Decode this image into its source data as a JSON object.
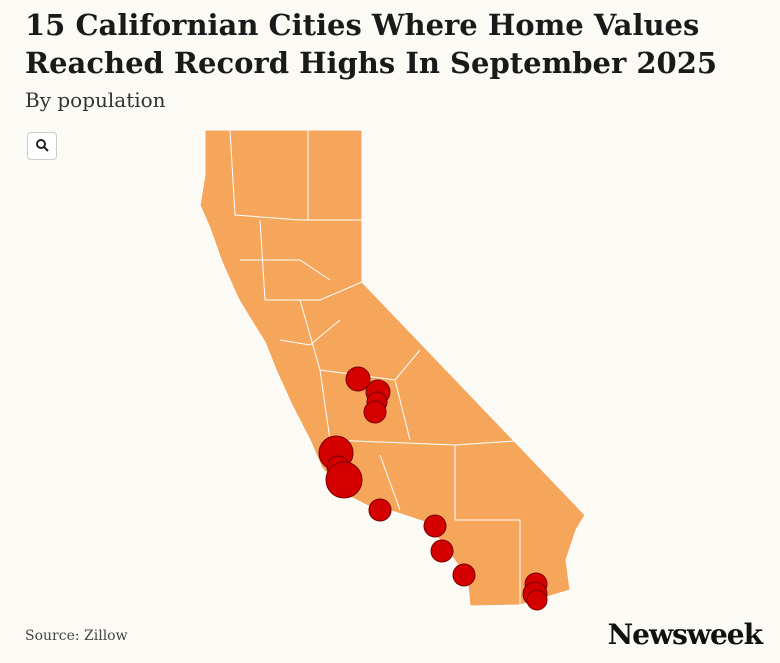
{
  "header": {
    "title": "15 Californian Cities Where Home Values Reached Record Highs In September 2025",
    "subtitle": "By population"
  },
  "footer": {
    "source": "Source: Zillow",
    "logo": "Newsweek"
  }
}
